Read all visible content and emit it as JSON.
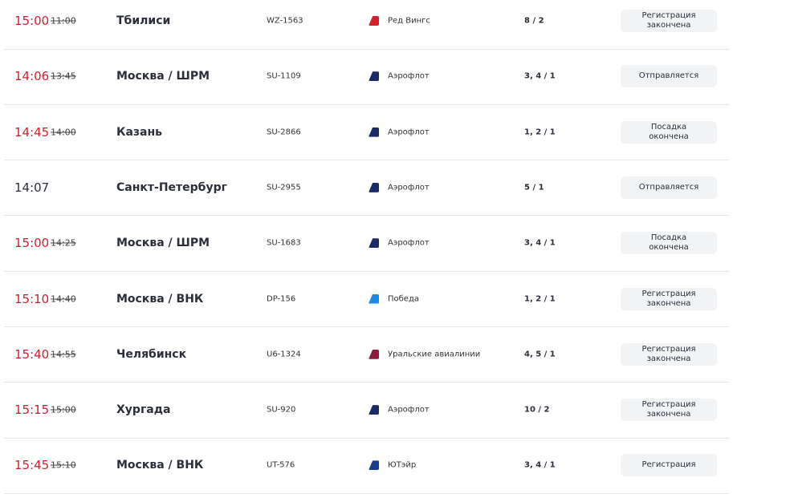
{
  "flights": [
    {
      "time": "15:00",
      "scheduled": "11:00",
      "destination": "Тбилиси",
      "flight": "WZ-1563",
      "airline": "Ред Вингс",
      "logo_color": "#d3202f",
      "gate": "8 / 2",
      "status": "Регистрация закончена"
    },
    {
      "time": "14:06",
      "scheduled": "13:45",
      "destination": "Москва / ШРМ",
      "flight": "SU-1109",
      "airline": "Аэрофлот",
      "logo_color": "#1b2a6b",
      "gate": "3, 4 / 1",
      "status": "Отправляется"
    },
    {
      "time": "14:45",
      "scheduled": "14:00",
      "destination": "Казань",
      "flight": "SU-2866",
      "airline": "Аэрофлот",
      "logo_color": "#1b2a6b",
      "gate": "1, 2 / 1",
      "status": "Посадка окончена"
    },
    {
      "time": "14:07",
      "scheduled": null,
      "destination": "Санкт-Петербург",
      "flight": "SU-2955",
      "airline": "Аэрофлот",
      "logo_color": "#1b2a6b",
      "gate": "5 / 1",
      "status": "Отправляется"
    },
    {
      "time": "15:00",
      "scheduled": "14:25",
      "destination": "Москва / ШРМ",
      "flight": "SU-1683",
      "airline": "Аэрофлот",
      "logo_color": "#1b2a6b",
      "gate": "3, 4 / 1",
      "status": "Посадка окончена"
    },
    {
      "time": "15:10",
      "scheduled": "14:40",
      "destination": "Москва / ВНК",
      "flight": "DP-156",
      "airline": "Победа",
      "logo_color": "#1e88e5",
      "gate": "1, 2 / 1",
      "status": "Регистрация закончена"
    },
    {
      "time": "15:40",
      "scheduled": "14:55",
      "destination": "Челябинск",
      "flight": "U6-1324",
      "airline": "Уральские авиалинии",
      "logo_color": "#8b1d3a",
      "gate": "4, 5 / 1",
      "status": "Регистрация закончена"
    },
    {
      "time": "15:15",
      "scheduled": "15:00",
      "destination": "Хургада",
      "flight": "SU-920",
      "airline": "Аэрофлот",
      "logo_color": "#1b2a6b",
      "gate": "10 / 2",
      "status": "Регистрация закончена"
    },
    {
      "time": "15:45",
      "scheduled": "15:10",
      "destination": "Москва / ВНК",
      "flight": "UT-576",
      "airline": "ЮТэйр",
      "logo_color": "#1a3c8f",
      "gate": "3, 4 / 1",
      "status": "Регистрация"
    }
  ]
}
